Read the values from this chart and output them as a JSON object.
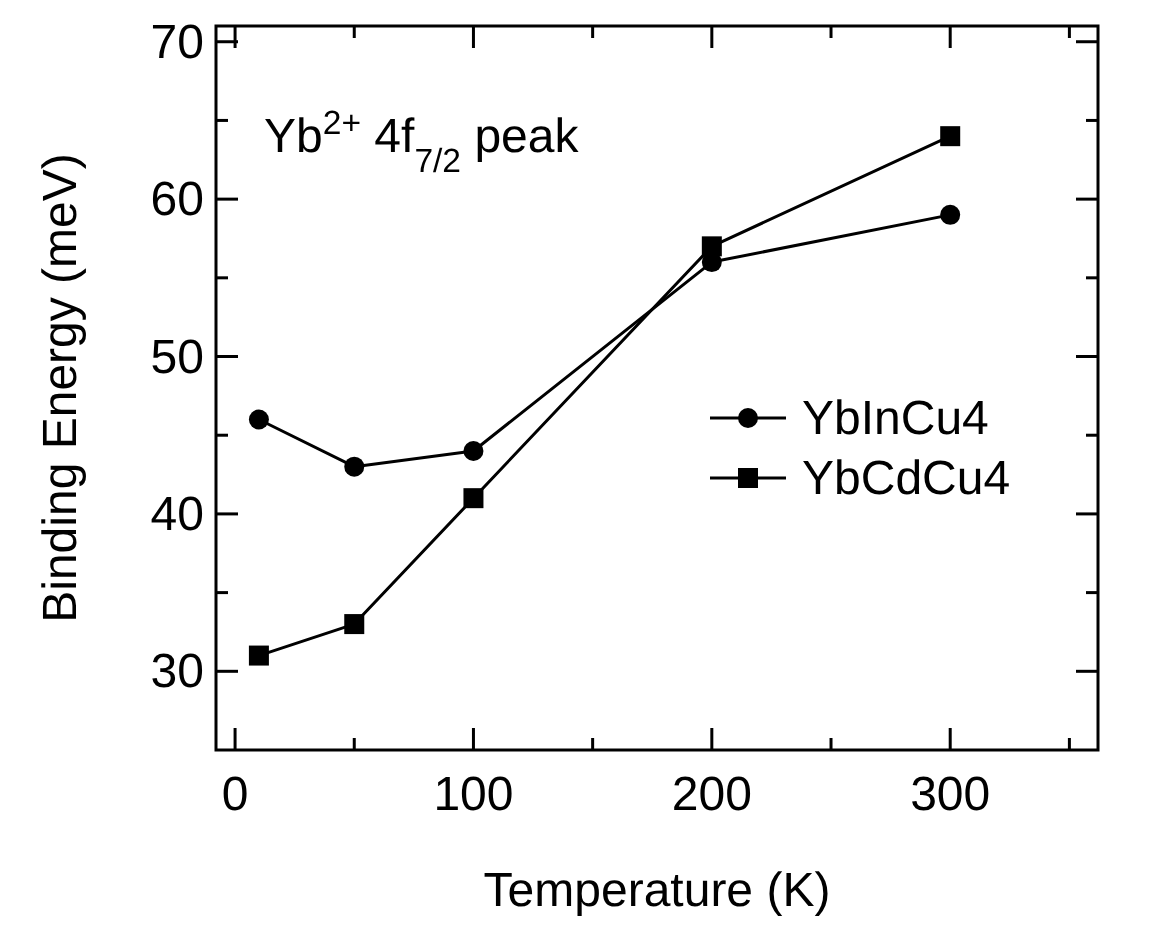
{
  "chart_data": {
    "type": "line",
    "xlabel": "Temperature (K)",
    "ylabel": "Binding Energy (meV)",
    "annotations": [
      "Yb$^{2+}$ 4f$_{7/2}$ peak"
    ],
    "x": [
      10,
      50,
      100,
      200,
      300
    ],
    "series": [
      {
        "name": "YbInCu4",
        "color": "#000000",
        "values": [
          46,
          43,
          44,
          56,
          59
        ],
        "marker": "circle"
      },
      {
        "name": "YbCdCu4",
        "color": "#000000",
        "values": [
          31,
          33,
          41,
          57,
          64
        ],
        "marker": "square"
      }
    ],
    "xlim": [
      -8,
      362
    ],
    "xticks": [
      0,
      {
        "value": 50,
        "label": null
      },
      100,
      {
        "value": 150,
        "label": null
      },
      200,
      {
        "value": 250,
        "label": null
      },
      300,
      {
        "value": 350,
        "label": null
      }
    ],
    "ylim": [
      25,
      71
    ],
    "yticks": [
      30,
      {
        "value": 35,
        "label": null
      },
      40,
      {
        "value": 45,
        "label": null
      },
      50,
      {
        "value": 55,
        "label": null
      },
      60,
      {
        "value": 65,
        "label": null
      },
      70
    ],
    "grid": false,
    "legend": "right",
    "line_style": "solid"
  }
}
